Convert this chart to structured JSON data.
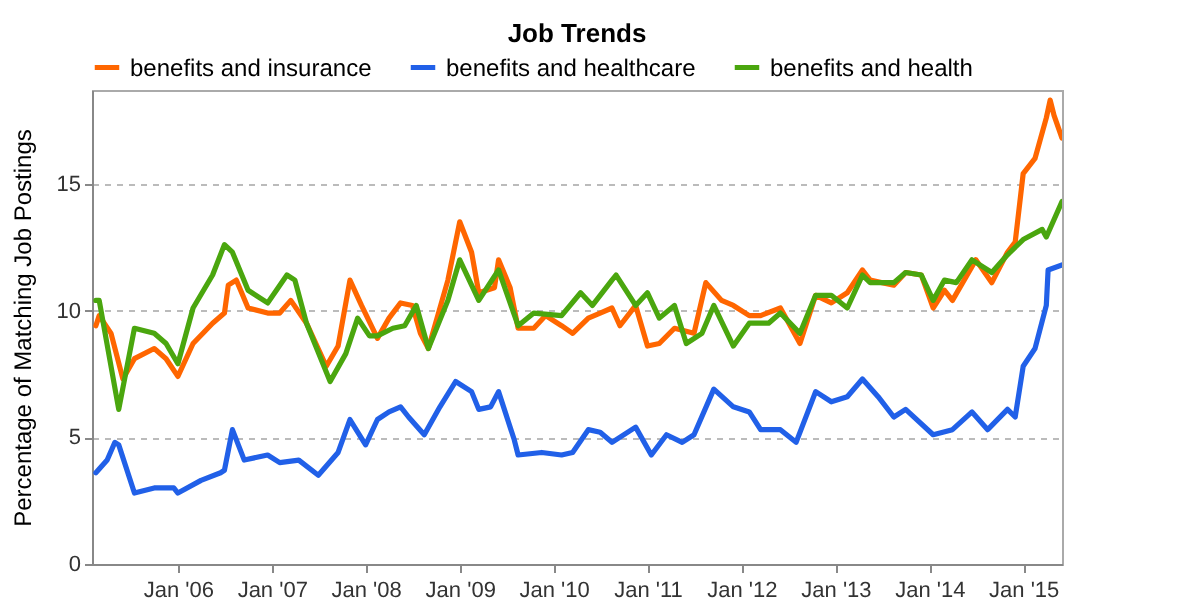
{
  "chart_data": {
    "type": "line",
    "title": "Job Trends",
    "ylabel": "Percentage of Matching Job Postings",
    "xlim": [
      "2005-02-01",
      "2015-06-01"
    ],
    "ylim": [
      0,
      18.7
    ],
    "yticks": [
      0,
      5,
      10,
      15
    ],
    "xticks": [
      {
        "value": "2006-01",
        "label": "Jan '06"
      },
      {
        "value": "2007-01",
        "label": "Jan '07"
      },
      {
        "value": "2008-01",
        "label": "Jan '08"
      },
      {
        "value": "2009-01",
        "label": "Jan '09"
      },
      {
        "value": "2010-01",
        "label": "Jan '10"
      },
      {
        "value": "2011-01",
        "label": "Jan '11"
      },
      {
        "value": "2012-01",
        "label": "Jan '12"
      },
      {
        "value": "2013-01",
        "label": "Jan '13"
      },
      {
        "value": "2014-01",
        "label": "Jan '14"
      },
      {
        "value": "2015-01",
        "label": "Jan '15"
      }
    ],
    "grid": "y",
    "legend": "top",
    "line_style": "solid",
    "series": [
      {
        "name": "benefits and insurance",
        "color": "#ff6600",
        "x": [
          "2005-02-16",
          "2005-03-01",
          "2005-04-16",
          "2005-06-01",
          "2005-07-16",
          "2005-10-01",
          "2005-11-16",
          "2006-01-01",
          "2006-03-01",
          "2006-05-16",
          "2006-07-01",
          "2006-07-16",
          "2006-08-16",
          "2006-10-01",
          "2006-12-16",
          "2007-02-01",
          "2007-03-16",
          "2007-05-16",
          "2007-08-01",
          "2007-09-16",
          "2007-11-01",
          "2007-12-16",
          "2008-02-16",
          "2008-04-01",
          "2008-05-16",
          "2008-07-01",
          "2008-08-01",
          "2008-09-01",
          "2008-11-16",
          "2009-01-01",
          "2009-02-16",
          "2009-03-16",
          "2009-05-16",
          "2009-06-01",
          "2009-07-16",
          "2009-08-16",
          "2009-10-16",
          "2009-12-01",
          "2010-02-01",
          "2010-03-16",
          "2010-05-16",
          "2010-07-01",
          "2010-08-16",
          "2010-09-16",
          "2010-11-16",
          "2011-01-01",
          "2011-02-16",
          "2011-04-16",
          "2011-07-01",
          "2011-08-16",
          "2011-10-16",
          "2011-12-01",
          "2012-02-01",
          "2012-03-16",
          "2012-06-01",
          "2012-08-16",
          "2012-10-16",
          "2012-12-16",
          "2013-02-16",
          "2013-04-16",
          "2013-05-16",
          "2013-08-16",
          "2013-10-01",
          "2013-12-01",
          "2014-01-16",
          "2014-03-01",
          "2014-04-01",
          "2014-07-01",
          "2014-09-01",
          "2014-11-01",
          "2014-12-01",
          "2015-01-01",
          "2015-02-16",
          "2015-04-01",
          "2015-04-16",
          "2015-05-01",
          "2015-06-01"
        ],
        "values": [
          9.4,
          9.8,
          9.1,
          7.3,
          8.1,
          8.5,
          8.1,
          7.4,
          8.7,
          9.5,
          9.9,
          11.0,
          11.2,
          10.1,
          9.9,
          9.9,
          10.4,
          9.5,
          7.8,
          8.6,
          11.2,
          10.2,
          8.9,
          9.7,
          10.3,
          10.2,
          9.1,
          8.5,
          11.2,
          13.5,
          12.3,
          10.7,
          10.9,
          12.0,
          10.9,
          9.3,
          9.3,
          9.8,
          9.4,
          9.1,
          9.7,
          9.9,
          10.1,
          9.4,
          10.2,
          8.6,
          8.7,
          9.3,
          9.1,
          11.1,
          10.4,
          10.2,
          9.8,
          9.8,
          10.1,
          8.7,
          10.6,
          10.3,
          10.7,
          11.6,
          11.2,
          11.0,
          11.5,
          11.4,
          10.1,
          10.8,
          10.4,
          12.0,
          11.1,
          12.3,
          12.7,
          15.4,
          16.0,
          17.6,
          18.3,
          17.7,
          16.8
        ]
      },
      {
        "name": "benefits and healthcare",
        "color": "#2160e8",
        "x": [
          "2005-02-16",
          "2005-04-01",
          "2005-05-01",
          "2005-05-16",
          "2005-07-16",
          "2005-10-01",
          "2005-12-16",
          "2006-01-01",
          "2006-04-01",
          "2006-06-16",
          "2006-07-01",
          "2006-08-01",
          "2006-09-16",
          "2006-12-16",
          "2007-02-01",
          "2007-04-16",
          "2007-07-01",
          "2007-09-16",
          "2007-11-01",
          "2008-01-01",
          "2008-02-16",
          "2008-04-01",
          "2008-05-16",
          "2008-06-16",
          "2008-08-16",
          "2008-10-16",
          "2008-12-16",
          "2009-02-16",
          "2009-03-16",
          "2009-05-01",
          "2009-06-01",
          "2009-08-01",
          "2009-08-16",
          "2009-11-16",
          "2010-02-01",
          "2010-03-16",
          "2010-05-16",
          "2010-07-01",
          "2010-08-16",
          "2010-11-16",
          "2011-01-16",
          "2011-03-16",
          "2011-05-16",
          "2011-07-01",
          "2011-09-16",
          "2011-12-01",
          "2012-02-01",
          "2012-03-16",
          "2012-06-01",
          "2012-08-01",
          "2012-10-16",
          "2012-12-16",
          "2013-02-16",
          "2013-04-16",
          "2013-06-16",
          "2013-08-16",
          "2013-10-01",
          "2014-01-16",
          "2014-04-01",
          "2014-06-16",
          "2014-08-16",
          "2014-11-01",
          "2014-12-01",
          "2015-01-01",
          "2015-02-16",
          "2015-04-01",
          "2015-04-08",
          "2015-06-01"
        ],
        "values": [
          3.6,
          4.1,
          4.8,
          4.7,
          2.8,
          3.0,
          3.0,
          2.8,
          3.3,
          3.6,
          3.7,
          5.3,
          4.1,
          4.3,
          4.0,
          4.1,
          3.5,
          4.4,
          5.7,
          4.7,
          5.7,
          6.0,
          6.2,
          5.8,
          5.1,
          6.2,
          7.2,
          6.8,
          6.1,
          6.2,
          6.8,
          4.9,
          4.3,
          4.4,
          4.3,
          4.4,
          5.3,
          5.2,
          4.8,
          5.4,
          4.3,
          5.1,
          4.8,
          5.1,
          6.9,
          6.2,
          6.0,
          5.3,
          5.3,
          4.8,
          6.8,
          6.4,
          6.6,
          7.3,
          6.6,
          5.8,
          6.1,
          5.1,
          5.3,
          6.0,
          5.3,
          6.1,
          5.8,
          7.8,
          8.5,
          10.2,
          11.6,
          11.8
        ]
      },
      {
        "name": "benefits and health",
        "color": "#4aa60e",
        "x": [
          "2005-02-16",
          "2005-03-01",
          "2005-05-16",
          "2005-07-16",
          "2005-10-01",
          "2005-11-16",
          "2006-01-01",
          "2006-03-01",
          "2006-05-16",
          "2006-07-01",
          "2006-08-01",
          "2006-10-01",
          "2006-12-16",
          "2007-03-01",
          "2007-04-01",
          "2007-05-16",
          "2007-08-16",
          "2007-10-16",
          "2007-12-01",
          "2008-01-16",
          "2008-02-16",
          "2008-04-16",
          "2008-06-01",
          "2008-07-16",
          "2008-09-01",
          "2008-11-16",
          "2009-01-01",
          "2009-03-16",
          "2009-06-01",
          "2009-08-16",
          "2009-10-16",
          "2010-02-01",
          "2010-04-16",
          "2010-06-01",
          "2010-08-16",
          "2010-09-01",
          "2010-11-16",
          "2011-01-01",
          "2011-02-16",
          "2011-04-16",
          "2011-06-01",
          "2011-08-01",
          "2011-09-16",
          "2011-12-01",
          "2012-02-01",
          "2012-04-16",
          "2012-06-01",
          "2012-08-16",
          "2012-10-16",
          "2012-12-16",
          "2013-02-16",
          "2013-04-16",
          "2013-05-16",
          "2013-08-16",
          "2013-10-01",
          "2013-12-01",
          "2014-01-16",
          "2014-03-01",
          "2014-04-16",
          "2014-06-16",
          "2014-09-01",
          "2014-11-01",
          "2015-01-01",
          "2015-03-16",
          "2015-04-01",
          "2015-06-01"
        ],
        "values": [
          10.4,
          10.4,
          6.1,
          9.3,
          9.1,
          8.7,
          7.9,
          10.1,
          11.4,
          12.6,
          12.3,
          10.8,
          10.3,
          11.4,
          11.2,
          9.5,
          7.2,
          8.3,
          9.7,
          9.0,
          9.0,
          9.3,
          9.4,
          10.2,
          8.5,
          10.4,
          12.0,
          10.4,
          11.6,
          9.4,
          9.9,
          9.8,
          10.7,
          10.2,
          11.2,
          11.4,
          10.2,
          10.7,
          9.7,
          10.2,
          8.7,
          9.1,
          10.2,
          8.6,
          9.5,
          9.5,
          9.9,
          9.1,
          10.6,
          10.6,
          10.1,
          11.4,
          11.1,
          11.1,
          11.5,
          11.4,
          10.4,
          11.2,
          11.1,
          12.0,
          11.5,
          12.2,
          12.8,
          13.2,
          12.9,
          14.3
        ]
      }
    ]
  }
}
